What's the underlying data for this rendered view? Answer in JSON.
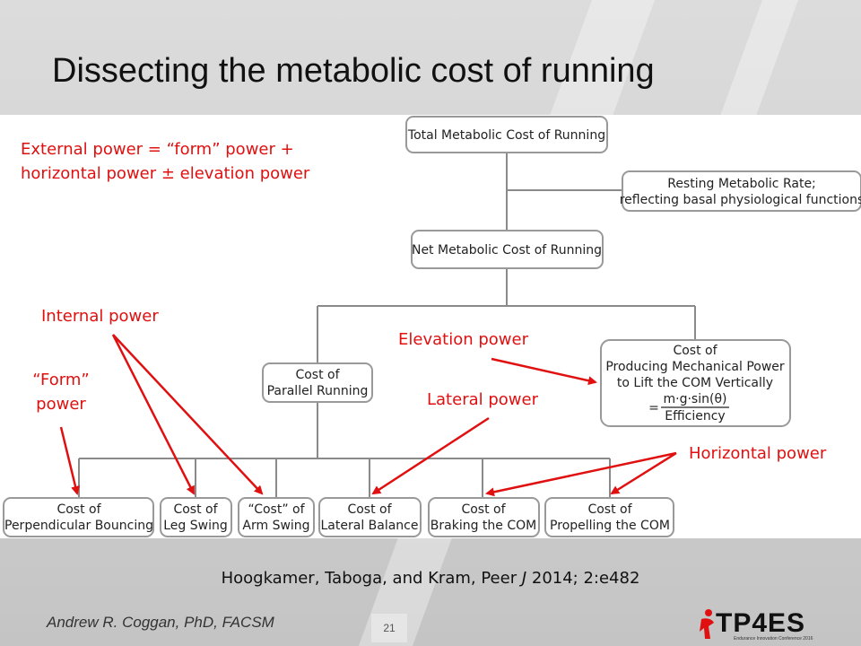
{
  "slide": {
    "title": "Dissecting the metabolic cost of running",
    "citation_prefix": "Hoogkamer, Taboga, and Kram, Peer ",
    "citation_journal": "J",
    "citation_suffix": " 2014; 2:e482",
    "author": "Andrew R. Coggan, PhD, FACSM",
    "page_number": "21",
    "logo_text": "TP4ES",
    "logo_subtext": "Endurance Innovation Conference 2016"
  },
  "annotations": {
    "external_line1": "External power = “form” power +",
    "external_line2": "horizontal power ± elevation power",
    "internal_power": "Internal power",
    "elevation_power": "Elevation power",
    "form_line1": "“Form”",
    "form_line2": "power",
    "lateral_power": "Lateral power",
    "horizontal_power": "Horizontal power"
  },
  "boxes": {
    "total": "Total Metabolic Cost of Running",
    "resting_line1": "Resting Metabolic Rate;",
    "resting_line2": "reflecting basal physiological functions",
    "net": "Net Metabolic Cost of Running",
    "parallel_line1": "Cost of",
    "parallel_line2": "Parallel Running",
    "vertical_line1": "Cost of",
    "vertical_line2": "Producing Mechanical Power",
    "vertical_line3": "to Lift the COM Vertically",
    "vertical_numerator": "m·g·sin(θ)",
    "vertical_equals": "=",
    "vertical_denominator": "Efficiency",
    "bouncing_line1": "Cost of",
    "bouncing_line2": "Perpendicular Bouncing",
    "leg_line1": "Cost of",
    "leg_line2": "Leg Swing",
    "arm_line1": "“Cost” of",
    "arm_line2": "Arm Swing",
    "lateral_line1": "Cost of",
    "lateral_line2": "Lateral Balance",
    "braking_line1": "Cost of",
    "braking_line2": "Braking the COM",
    "propelling_line1": "Cost of",
    "propelling_line2": "Propelling the COM"
  },
  "colors": {
    "annotation_red": "#e01010",
    "box_border": "#999999",
    "connector": "#8a8a8a"
  }
}
